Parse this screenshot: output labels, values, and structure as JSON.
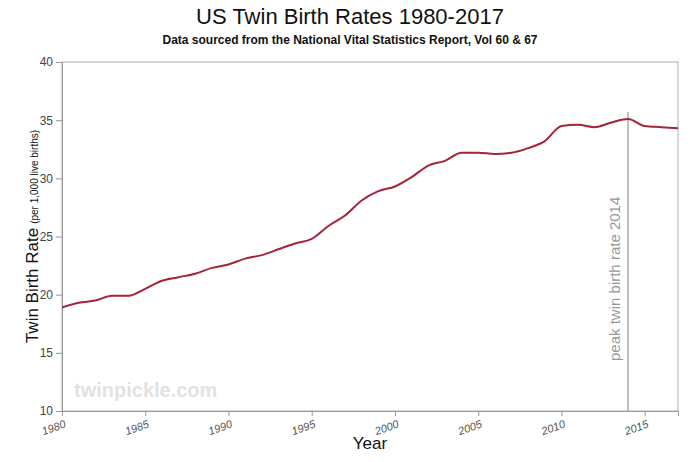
{
  "chart_data": {
    "type": "line",
    "title": "US Twin Birth Rates 1980-2017",
    "subtitle": "Data sourced from the National Vital Statistics Report, Vol 60 & 67",
    "xlabel": "Year",
    "ylabel": "Twin Birth Rate",
    "ylabel_note": "(per 1,000 live births)",
    "x": [
      1980,
      1981,
      1982,
      1983,
      1984,
      1985,
      1986,
      1987,
      1988,
      1989,
      1990,
      1991,
      1992,
      1993,
      1994,
      1995,
      1996,
      1997,
      1998,
      1999,
      2000,
      2001,
      2002,
      2003,
      2004,
      2005,
      2006,
      2007,
      2008,
      2009,
      2010,
      2011,
      2012,
      2013,
      2014,
      2015,
      2016,
      2017
    ],
    "values": [
      18.9,
      19.3,
      19.5,
      19.9,
      19.9,
      20.5,
      21.2,
      21.5,
      21.8,
      22.3,
      22.6,
      23.1,
      23.4,
      23.9,
      24.4,
      24.8,
      25.9,
      26.8,
      28.1,
      28.9,
      29.3,
      30.1,
      31.1,
      31.5,
      32.2,
      32.2,
      32.1,
      32.2,
      32.6,
      33.2,
      34.5,
      34.6,
      34.4,
      34.8,
      35.1,
      34.5,
      34.4,
      34.3
    ],
    "color": "#a3243b",
    "xlim": [
      1980,
      2017
    ],
    "xticks": [
      1980,
      1985,
      1990,
      1995,
      2000,
      2005,
      2010,
      2015
    ],
    "ylim": [
      10,
      40
    ],
    "yticks": [
      10,
      15,
      20,
      25,
      30,
      35,
      40
    ],
    "grid": false,
    "annotations": [
      {
        "x": 2014,
        "text": "peak twin birth rate 2014"
      },
      {
        "text": "twinpickle.com"
      }
    ]
  }
}
